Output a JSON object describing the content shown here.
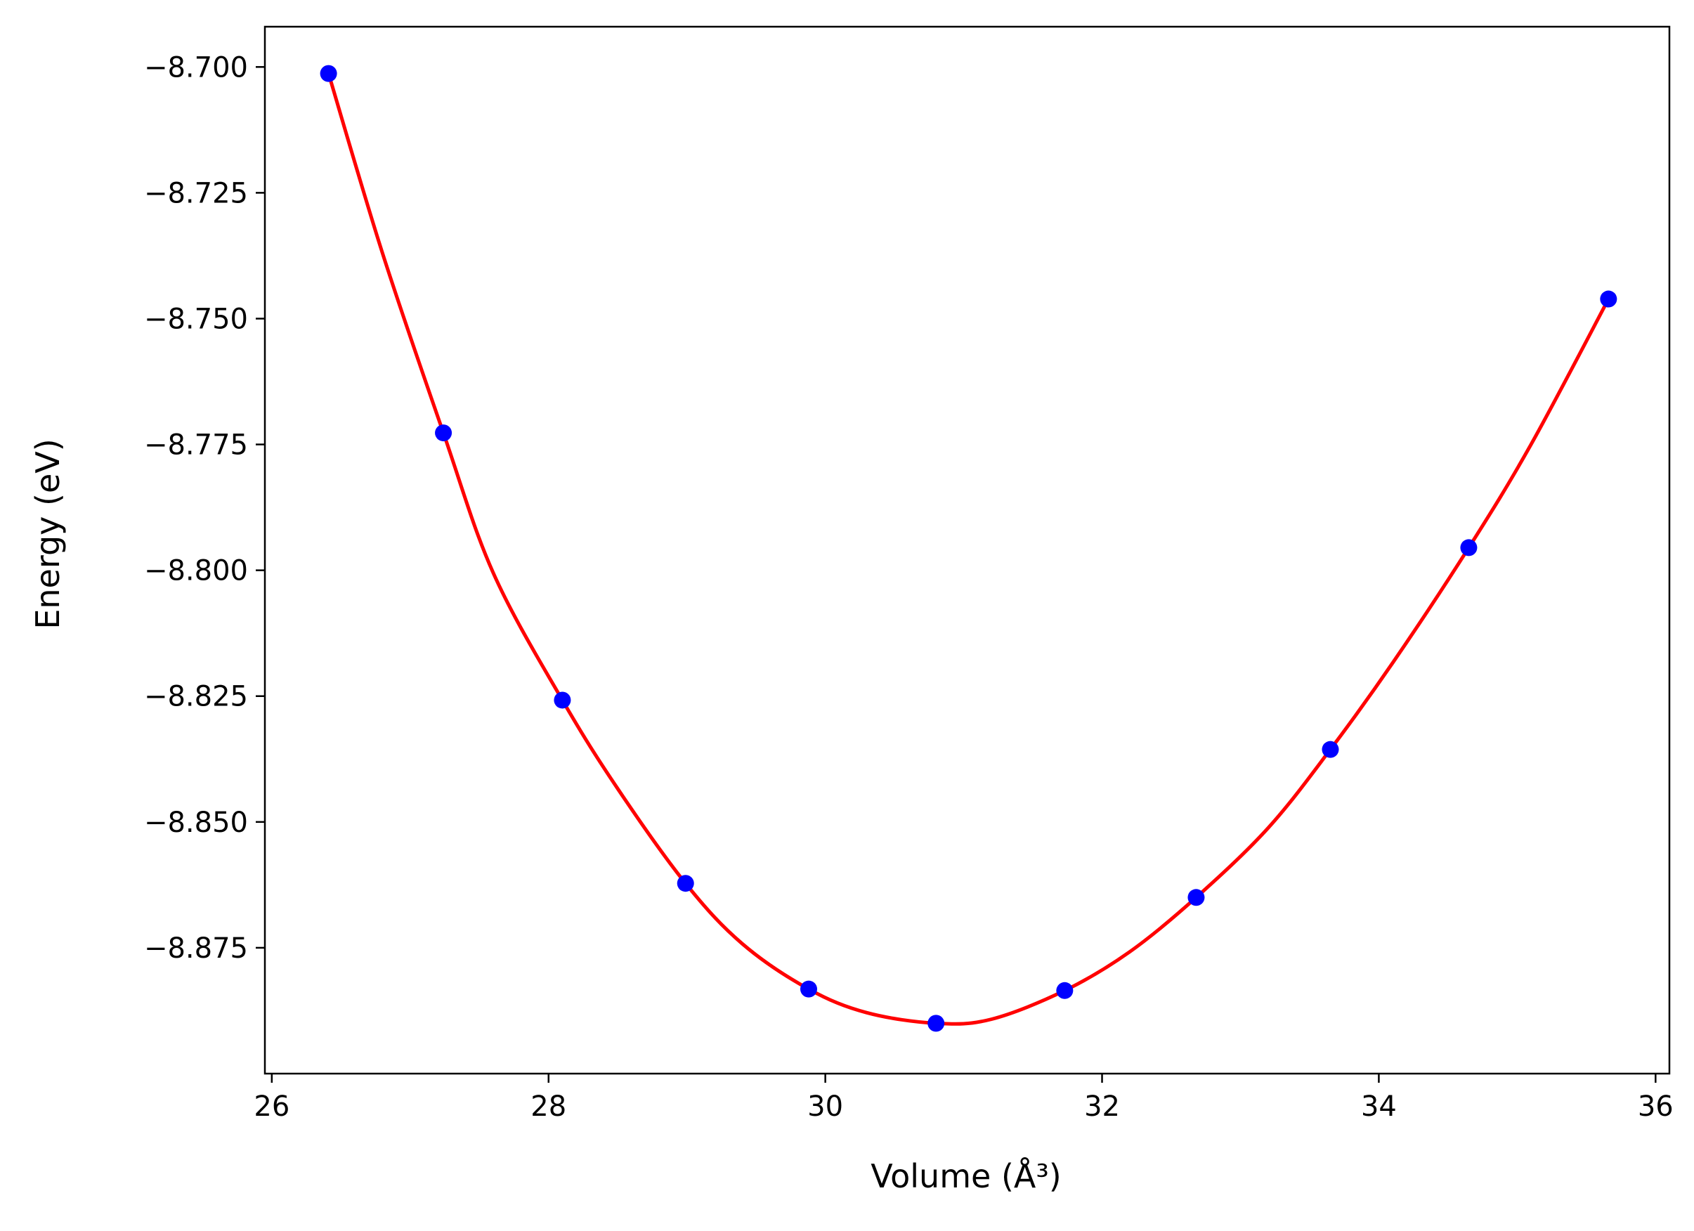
{
  "chart_data": {
    "type": "scatter",
    "title": "",
    "xlabel": "Volume (Å³)",
    "ylabel": "Energy (eV)",
    "xlim": [
      25.95,
      36.1
    ],
    "ylim": [
      -8.9,
      -8.692
    ],
    "xticks": [
      26,
      28,
      30,
      32,
      34,
      36
    ],
    "xtick_labels": [
      "26",
      "28",
      "30",
      "32",
      "34",
      "36"
    ],
    "yticks": [
      -8.7,
      -8.725,
      -8.75,
      -8.775,
      -8.8,
      -8.825,
      -8.85,
      -8.875
    ],
    "ytick_labels": [
      "−8.700",
      "−8.725",
      "−8.750",
      "−8.775",
      "−8.800",
      "−8.825",
      "−8.850",
      "−8.875"
    ],
    "grid": false,
    "legend": "none",
    "series": [
      {
        "kind": "points",
        "color": "#0000ff",
        "x": [
          26.41,
          27.24,
          28.1,
          28.99,
          29.88,
          30.8,
          31.73,
          32.68,
          33.65,
          34.65,
          35.66
        ],
        "y": [
          -8.7013,
          -8.7727,
          -8.8258,
          -8.8622,
          -8.8832,
          -8.89,
          -8.8835,
          -8.865,
          -8.8356,
          -8.7955,
          -8.7461
        ]
      },
      {
        "kind": "fit-curve",
        "color": "#ff0000",
        "x": [
          26.41,
          26.8,
          27.24,
          27.6,
          28.1,
          28.5,
          28.99,
          29.4,
          29.88,
          30.3,
          30.8,
          31.2,
          31.73,
          32.2,
          32.68,
          33.2,
          33.65,
          34.1,
          34.65,
          35.1,
          35.66
        ],
        "y": [
          -8.7013,
          -8.737,
          -8.7727,
          -8.8005,
          -8.8258,
          -8.8434,
          -8.8622,
          -8.8742,
          -8.8832,
          -8.8879,
          -8.89,
          -8.8892,
          -8.8835,
          -8.8758,
          -8.865,
          -8.8512,
          -8.8356,
          -8.8184,
          -8.7955,
          -8.775,
          -8.7461
        ]
      }
    ]
  }
}
